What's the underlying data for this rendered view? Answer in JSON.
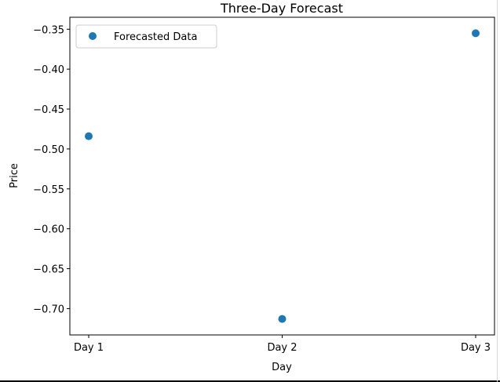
{
  "chart_data": {
    "type": "scatter",
    "title": "Three-Day Forecast",
    "xlabel": "Day",
    "ylabel": "Price",
    "categories": [
      "Day 1",
      "Day 2",
      "Day 3"
    ],
    "series": [
      {
        "name": "Forecasted Data",
        "values": [
          -0.484,
          -0.713,
          -0.355
        ],
        "color": "#1f77b4"
      }
    ],
    "ylim": [
      -0.733,
      -0.335
    ],
    "yticks": [
      -0.35,
      -0.4,
      -0.45,
      -0.5,
      -0.55,
      -0.6,
      -0.65,
      -0.7
    ],
    "ytick_labels": [
      "−0.35",
      "−0.40",
      "−0.45",
      "−0.50",
      "−0.55",
      "−0.60",
      "−0.65",
      "−0.70"
    ],
    "grid": false,
    "legend": "top-left"
  }
}
